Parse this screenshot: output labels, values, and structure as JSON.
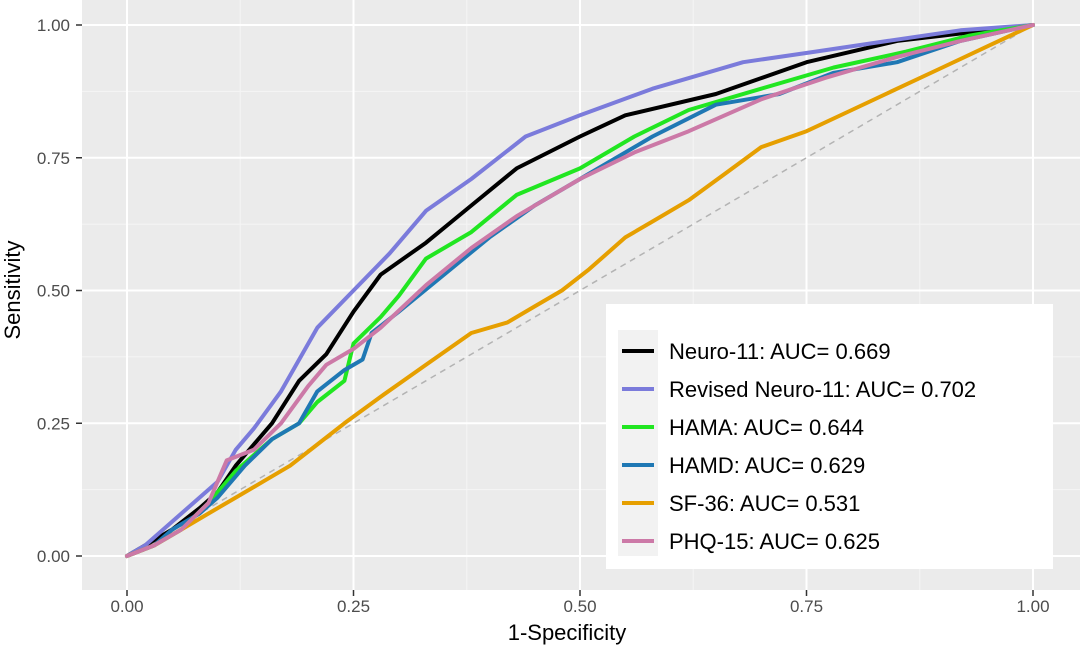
{
  "chart_data": {
    "type": "line",
    "title": "",
    "xlabel": "1-Specificity",
    "ylabel": "Sensitivity",
    "xlim": [
      0,
      1
    ],
    "ylim": [
      0,
      1
    ],
    "x_ticks": [
      "0.00",
      "0.25",
      "0.50",
      "0.75",
      "1.00"
    ],
    "y_ticks": [
      "0.00",
      "0.25",
      "0.50",
      "0.75",
      "1.00"
    ],
    "grid": true,
    "legend_position": "bottom-right",
    "reference_line": {
      "from": [
        0,
        0
      ],
      "to": [
        1,
        1
      ],
      "style": "dashed",
      "color": "#b3b3b3"
    },
    "panel_color": "#ebebeb",
    "series": [
      {
        "name": "Neuro-11: AUC= 0.669",
        "color": "#000000",
        "x": [
          0,
          0.02,
          0.05,
          0.08,
          0.1,
          0.12,
          0.14,
          0.16,
          0.19,
          0.22,
          0.25,
          0.28,
          0.33,
          0.38,
          0.43,
          0.5,
          0.55,
          0.65,
          0.7,
          0.75,
          0.8,
          0.85,
          0.9,
          0.95,
          1.0
        ],
        "y": [
          0,
          0.02,
          0.05,
          0.09,
          0.12,
          0.17,
          0.21,
          0.25,
          0.33,
          0.38,
          0.46,
          0.53,
          0.59,
          0.66,
          0.73,
          0.79,
          0.83,
          0.87,
          0.9,
          0.93,
          0.95,
          0.97,
          0.98,
          0.99,
          1.0
        ]
      },
      {
        "name": "Revised Neuro-11: AUC= 0.702",
        "color": "#7b7bdb",
        "x": [
          0,
          0.02,
          0.04,
          0.06,
          0.08,
          0.1,
          0.12,
          0.14,
          0.17,
          0.21,
          0.25,
          0.29,
          0.33,
          0.38,
          0.44,
          0.5,
          0.58,
          0.68,
          0.76,
          0.84,
          0.92,
          1.0
        ],
        "y": [
          0,
          0.02,
          0.05,
          0.08,
          0.11,
          0.14,
          0.2,
          0.24,
          0.31,
          0.43,
          0.5,
          0.57,
          0.65,
          0.71,
          0.79,
          0.83,
          0.88,
          0.93,
          0.95,
          0.97,
          0.99,
          1.0
        ]
      },
      {
        "name": "HAMA: AUC= 0.644",
        "color": "#21e621",
        "x": [
          0,
          0.03,
          0.06,
          0.09,
          0.12,
          0.16,
          0.19,
          0.21,
          0.24,
          0.25,
          0.28,
          0.3,
          0.33,
          0.38,
          0.43,
          0.5,
          0.56,
          0.62,
          0.7,
          0.78,
          0.86,
          0.93,
          1.0
        ],
        "y": [
          0,
          0.02,
          0.05,
          0.1,
          0.16,
          0.22,
          0.25,
          0.29,
          0.33,
          0.4,
          0.45,
          0.49,
          0.56,
          0.61,
          0.68,
          0.73,
          0.79,
          0.84,
          0.88,
          0.92,
          0.95,
          0.98,
          1.0
        ]
      },
      {
        "name": "HAMD: AUC=  0.629",
        "color": "#1f78b4",
        "x": [
          0,
          0.03,
          0.05,
          0.08,
          0.1,
          0.13,
          0.16,
          0.19,
          0.21,
          0.24,
          0.26,
          0.27,
          0.3,
          0.35,
          0.4,
          0.45,
          0.5,
          0.58,
          0.65,
          0.72,
          0.78,
          0.85,
          0.92,
          1.0
        ],
        "y": [
          0,
          0.02,
          0.05,
          0.08,
          0.11,
          0.17,
          0.22,
          0.25,
          0.31,
          0.35,
          0.37,
          0.42,
          0.46,
          0.53,
          0.6,
          0.66,
          0.71,
          0.79,
          0.85,
          0.87,
          0.91,
          0.93,
          0.97,
          1.0
        ]
      },
      {
        "name": "SF-36: AUC=  0.531",
        "color": "#e69f00",
        "x": [
          0,
          0.03,
          0.06,
          0.09,
          0.12,
          0.15,
          0.18,
          0.21,
          0.24,
          0.28,
          0.33,
          0.38,
          0.42,
          0.45,
          0.48,
          0.51,
          0.55,
          0.58,
          0.62,
          0.66,
          0.7,
          0.75,
          0.8,
          0.85,
          0.9,
          0.95,
          1.0
        ],
        "y": [
          0,
          0.02,
          0.05,
          0.08,
          0.11,
          0.14,
          0.17,
          0.21,
          0.25,
          0.3,
          0.36,
          0.42,
          0.44,
          0.47,
          0.5,
          0.54,
          0.6,
          0.63,
          0.67,
          0.72,
          0.77,
          0.8,
          0.84,
          0.88,
          0.92,
          0.96,
          1.0
        ]
      },
      {
        "name": "PHQ-15: AUC= 0.625",
        "color": "#cc79a7",
        "x": [
          0,
          0.03,
          0.06,
          0.09,
          0.11,
          0.14,
          0.17,
          0.2,
          0.22,
          0.25,
          0.28,
          0.33,
          0.38,
          0.43,
          0.5,
          0.56,
          0.62,
          0.7,
          0.77,
          0.85,
          0.92,
          1.0
        ],
        "y": [
          0,
          0.02,
          0.05,
          0.1,
          0.18,
          0.2,
          0.25,
          0.32,
          0.36,
          0.39,
          0.43,
          0.51,
          0.58,
          0.64,
          0.71,
          0.76,
          0.8,
          0.86,
          0.9,
          0.94,
          0.97,
          1.0
        ]
      }
    ]
  }
}
